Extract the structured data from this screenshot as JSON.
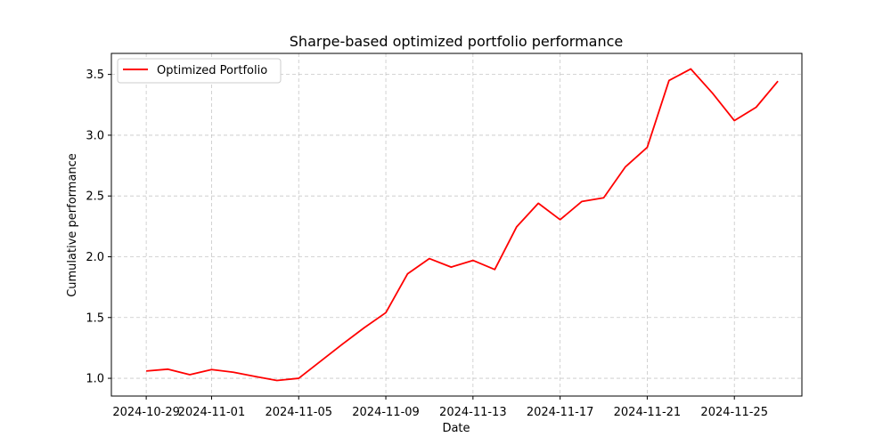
{
  "chart_data": {
    "type": "line",
    "title": "Sharpe-based optimized portfolio performance",
    "xlabel": "Date",
    "ylabel": "Cumulative performance",
    "x": [
      "2024-10-29",
      "2024-10-30",
      "2024-10-31",
      "2024-11-01",
      "2024-11-02",
      "2024-11-03",
      "2024-11-04",
      "2024-11-05",
      "2024-11-06",
      "2024-11-07",
      "2024-11-08",
      "2024-11-09",
      "2024-11-10",
      "2024-11-11",
      "2024-11-12",
      "2024-11-13",
      "2024-11-14",
      "2024-11-15",
      "2024-11-16",
      "2024-11-17",
      "2024-11-18",
      "2024-11-19",
      "2024-11-20",
      "2024-11-21",
      "2024-11-22",
      "2024-11-23",
      "2024-11-24",
      "2024-11-25",
      "2024-11-26",
      "2024-11-27"
    ],
    "series": [
      {
        "name": "Optimized Portfolio",
        "color": "#ff0000",
        "values": [
          1.06,
          1.075,
          1.03,
          1.072,
          1.05,
          1.015,
          0.982,
          1.0,
          1.14,
          1.28,
          1.415,
          1.54,
          1.86,
          1.985,
          1.915,
          1.97,
          1.895,
          2.245,
          2.44,
          2.305,
          2.455,
          2.485,
          2.74,
          2.9,
          3.45,
          3.545,
          3.345,
          3.12,
          3.23,
          3.445
        ]
      }
    ],
    "xticks": [
      "2024-10-29",
      "2024-11-01",
      "2024-11-05",
      "2024-11-09",
      "2024-11-13",
      "2024-11-17",
      "2024-11-21",
      "2024-11-25"
    ],
    "yticks": [
      1.0,
      1.5,
      2.0,
      2.5,
      3.0,
      3.5
    ],
    "ytick_labels": [
      "1.0",
      "1.5",
      "2.0",
      "2.5",
      "3.0",
      "3.5"
    ],
    "xlim": [
      "2024-10-27.4",
      "2024-11-28.9"
    ],
    "ylim": [
      0.854,
      3.673
    ],
    "grid": true,
    "legend_position": "top-left"
  }
}
